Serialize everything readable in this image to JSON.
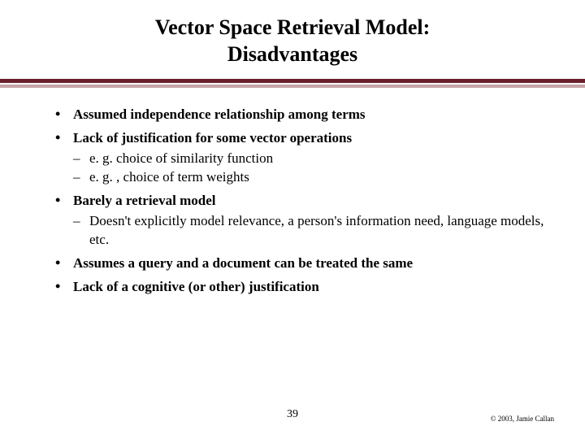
{
  "title": {
    "line1": "Vector Space Retrieval Model:",
    "line2": "Disadvantages",
    "fontsize": 26,
    "color": "#000000"
  },
  "divider": {
    "dark_color": "#6b1f2a",
    "light_color": "#c9a3a8"
  },
  "body": {
    "fontsize": 17,
    "color": "#000000",
    "bullets": [
      {
        "text": "Assumed independence relationship among terms",
        "sub": []
      },
      {
        "text": "Lack of justification for some vector operations",
        "sub": [
          "e. g. choice of similarity function",
          "e. g. , choice of term weights"
        ]
      },
      {
        "text": "Barely a retrieval model",
        "sub": [
          "Doesn't explicitly model relevance, a person's information need, language models, etc."
        ]
      },
      {
        "text": "Assumes a query and a document can be treated the same",
        "sub": []
      },
      {
        "text": "Lack of a cognitive (or other) justification",
        "sub": []
      }
    ]
  },
  "footer": {
    "page_number": "39",
    "copyright": "© 2003, Jamie Callan"
  }
}
